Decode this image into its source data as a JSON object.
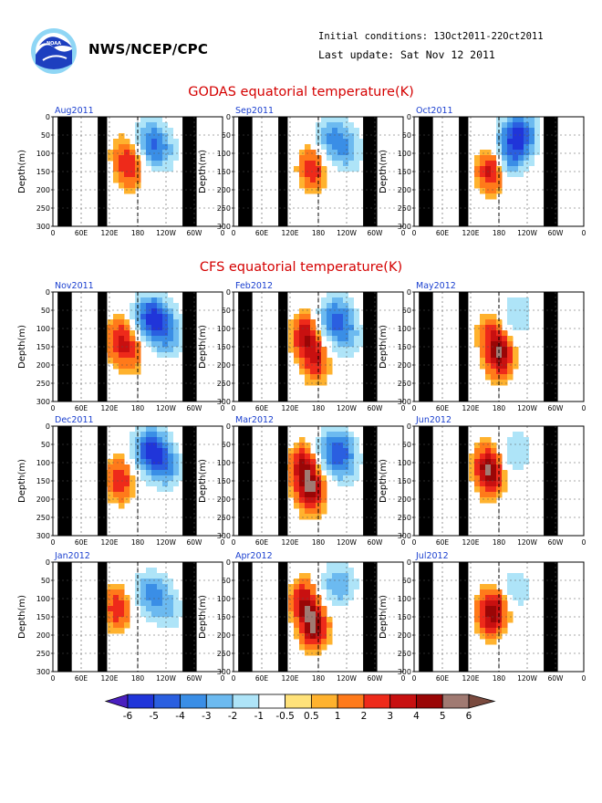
{
  "header": {
    "org": "NWS/NCEP/CPC",
    "initial_conditions": "Initial conditions: 13Oct2011-22Oct2011",
    "last_update": "Last update: Sat Nov 12 2011",
    "logo_icon": "noaa-logo-icon"
  },
  "sections": {
    "godas_title": "GODAS equatorial temperature(K)",
    "cfs_title": "CFS equatorial temperature(K)"
  },
  "chart_data": [
    {
      "type": "heatmap",
      "group": "GODAS",
      "panels": [
        {
          "title": "Aug2011",
          "warm": [
            {
              "lon": 163,
              "depth": 135,
              "peak": 3
            },
            {
              "lon": 142,
              "depth": 95,
              "peak": 1
            }
          ],
          "cool": [
            {
              "lon": 205,
              "depth": 60,
              "peak": -3
            },
            {
              "lon": 225,
              "depth": 100,
              "peak": -2
            }
          ]
        },
        {
          "title": "Sep2011",
          "warm": [
            {
              "lon": 165,
              "depth": 140,
              "peak": 3
            }
          ],
          "cool": [
            {
              "lon": 210,
              "depth": 55,
              "peak": -3
            },
            {
              "lon": 240,
              "depth": 100,
              "peak": -2
            }
          ]
        },
        {
          "title": "Oct2011",
          "warm": [
            {
              "lon": 160,
              "depth": 145,
              "peak": 4
            }
          ],
          "cool": [
            {
              "lon": 220,
              "depth": 45,
              "peak": -5
            },
            {
              "lon": 200,
              "depth": 110,
              "peak": -3
            }
          ]
        }
      ],
      "ylabel": "Depth(m)",
      "ylim": [
        300,
        0
      ],
      "yticks": [
        0,
        50,
        100,
        150,
        200,
        250,
        300
      ],
      "xlim": [
        0,
        360
      ],
      "xtick_values": [
        0,
        60,
        120,
        180,
        240,
        300,
        360
      ],
      "xticks": [
        "0",
        "60E",
        "120E",
        "180",
        "120W",
        "60W",
        "0"
      ],
      "grid": true
    },
    {
      "type": "heatmap",
      "group": "CFS",
      "panels": [
        {
          "title": "Nov2011",
          "warm": [
            {
              "lon": 138,
              "depth": 130,
              "peak": 3
            },
            {
              "lon": 165,
              "depth": 160,
              "peak": 2
            }
          ],
          "cool": [
            {
              "lon": 208,
              "depth": 65,
              "peak": -5
            },
            {
              "lon": 240,
              "depth": 120,
              "peak": -3
            }
          ]
        },
        {
          "title": "Feb2012",
          "warm": [
            {
              "lon": 150,
              "depth": 120,
              "peak": 4
            },
            {
              "lon": 172,
              "depth": 185,
              "peak": 3
            }
          ],
          "cool": [
            {
              "lon": 215,
              "depth": 70,
              "peak": -4
            },
            {
              "lon": 238,
              "depth": 130,
              "peak": -2
            }
          ]
        },
        {
          "title": "May2012",
          "warm": [
            {
              "lon": 178,
              "depth": 170,
              "peak": 5
            },
            {
              "lon": 160,
              "depth": 110,
              "peak": 2
            }
          ],
          "cool": [
            {
              "lon": 215,
              "depth": 60,
              "peak": -2
            }
          ]
        },
        {
          "title": "Dec2011",
          "warm": [
            {
              "lon": 140,
              "depth": 145,
              "peak": 3
            }
          ],
          "cool": [
            {
              "lon": 205,
              "depth": 60,
              "peak": -5
            },
            {
              "lon": 235,
              "depth": 115,
              "peak": -3
            }
          ]
        },
        {
          "title": "Mar2012",
          "warm": [
            {
              "lon": 145,
              "depth": 110,
              "peak": 4
            },
            {
              "lon": 162,
              "depth": 175,
              "peak": 5
            }
          ],
          "cool": [
            {
              "lon": 215,
              "depth": 60,
              "peak": -4
            },
            {
              "lon": 232,
              "depth": 110,
              "peak": -2
            }
          ]
        },
        {
          "title": "Jun2012",
          "warm": [
            {
              "lon": 160,
              "depth": 130,
              "peak": 4
            },
            {
              "lon": 148,
              "depth": 100,
              "peak": 2
            }
          ],
          "cool": [
            {
              "lon": 215,
              "depth": 70,
              "peak": -2
            }
          ]
        },
        {
          "title": "Jan2012",
          "warm": [
            {
              "lon": 135,
              "depth": 125,
              "peak": 3
            }
          ],
          "cool": [
            {
              "lon": 205,
              "depth": 80,
              "peak": -3
            },
            {
              "lon": 240,
              "depth": 130,
              "peak": -2
            }
          ]
        },
        {
          "title": "Apr2012",
          "warm": [
            {
              "lon": 148,
              "depth": 110,
              "peak": 4
            },
            {
              "lon": 168,
              "depth": 175,
              "peak": 5
            }
          ],
          "cool": [
            {
              "lon": 220,
              "depth": 60,
              "peak": -3
            }
          ]
        },
        {
          "title": "Jul2012",
          "warm": [
            {
              "lon": 158,
              "depth": 140,
              "peak": 4
            },
            {
              "lon": 180,
              "depth": 115,
              "peak": 2
            }
          ],
          "cool": [
            {
              "lon": 210,
              "depth": 75,
              "peak": -2
            }
          ]
        }
      ],
      "ylabel": "Depth(m)",
      "ylim": [
        300,
        0
      ],
      "yticks": [
        0,
        50,
        100,
        150,
        200,
        250,
        300
      ],
      "xlim": [
        0,
        360
      ],
      "xtick_values": [
        0,
        60,
        120,
        180,
        240,
        300,
        360
      ],
      "xticks": [
        "0",
        "60E",
        "120E",
        "180",
        "120W",
        "60W",
        "0"
      ],
      "grid": true,
      "land_mask_lon": [
        [
          10,
          40
        ],
        [
          95,
          115
        ],
        [
          275,
          305
        ]
      ]
    },
    {
      "type": "colorbar",
      "ticks": [
        "-6",
        "-5",
        "-4",
        "-3",
        "-2",
        "-1",
        "-0.5",
        "0.5",
        "1",
        "2",
        "3",
        "4",
        "5",
        "6"
      ],
      "colors": [
        "#4a1fbf",
        "#2035d9",
        "#2a5fe0",
        "#3a8ee6",
        "#6cbaf0",
        "#aee4f8",
        "#ffffff",
        "#ffe27a",
        "#ffb22e",
        "#ff7a1a",
        "#ee2a1a",
        "#c81010",
        "#9a0606",
        "#a07a72",
        "#7a4a3e"
      ]
    }
  ]
}
